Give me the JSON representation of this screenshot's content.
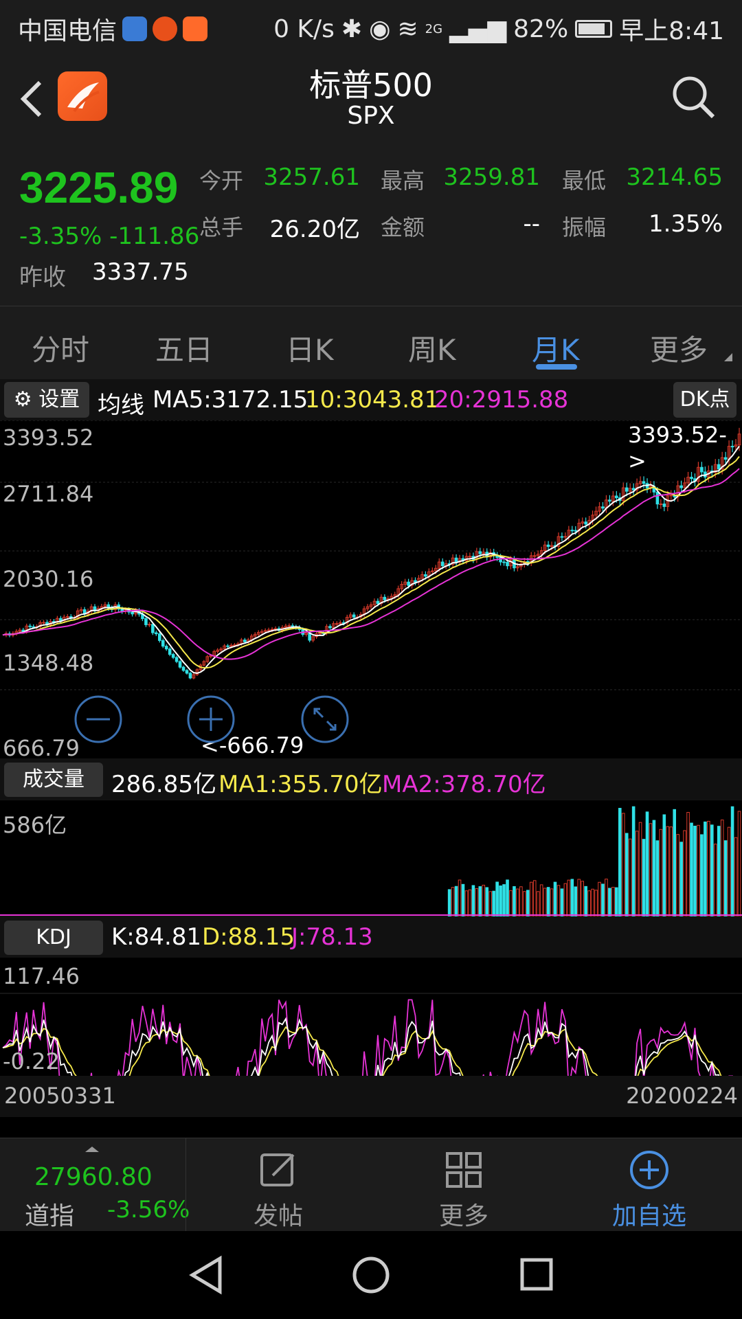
{
  "status_bar": {
    "carrier": "中国电信",
    "net_speed": "0 K/s",
    "signal_type": "2G",
    "battery": "82%",
    "time": "早上8:41"
  },
  "header": {
    "title": "标普500",
    "subtitle": "SPX"
  },
  "quote": {
    "price": "3225.89",
    "change": "-3.35% -111.86",
    "prev_close_label": "昨收",
    "prev_close": "3337.75",
    "open_label": "今开",
    "open": "3257.61",
    "high_label": "最高",
    "high": "3259.81",
    "low_label": "最低",
    "low": "3214.65",
    "volume_label": "总手",
    "volume": "26.20亿",
    "amount_label": "金额",
    "amount": "--",
    "amplitude_label": "振幅",
    "amplitude": "1.35%"
  },
  "tabs": [
    {
      "label": "分时",
      "active": false
    },
    {
      "label": "五日",
      "active": false
    },
    {
      "label": "日K",
      "active": false
    },
    {
      "label": "周K",
      "active": false
    },
    {
      "label": "月K",
      "active": true
    },
    {
      "label": "更多",
      "active": false
    }
  ],
  "ma_bar": {
    "settings_label": "设置",
    "ma_label": "均线",
    "ma5": "MA5:3172.15",
    "ma10": "10:3043.81",
    "ma20": "20:2915.88",
    "dk_label": "DK点"
  },
  "price_chart": {
    "y_labels": [
      "3393.52",
      "2711.84",
      "2030.16",
      "1348.48",
      "666.79"
    ],
    "high_marker": "3393.52->",
    "low_marker": "<-666.79"
  },
  "volume_bar": {
    "label": "成交量",
    "value": "286.85亿",
    "ma1": "MA1:355.70亿",
    "ma2": "MA2:378.70亿",
    "y_label": "586亿"
  },
  "kdj_bar": {
    "label": "KDJ",
    "k": "K:84.81",
    "d": "D:88.15",
    "j": "J:78.13",
    "y_top": "117.46",
    "y_bottom": "-0.22"
  },
  "dates": {
    "start": "20050331",
    "end": "20200224"
  },
  "bottom_nav": {
    "dow_value": "27960.80",
    "dow_name": "道指",
    "dow_change": "-3.56%",
    "post": "发帖",
    "more": "更多",
    "add": "加自选"
  },
  "colors": {
    "up": "#d93a2b",
    "down": "#2fe0e6",
    "green": "#1ec31e",
    "ma5": "#ffffff",
    "ma10": "#f5e94b",
    "ma20": "#e633d6",
    "accent": "#4a90e2"
  }
}
